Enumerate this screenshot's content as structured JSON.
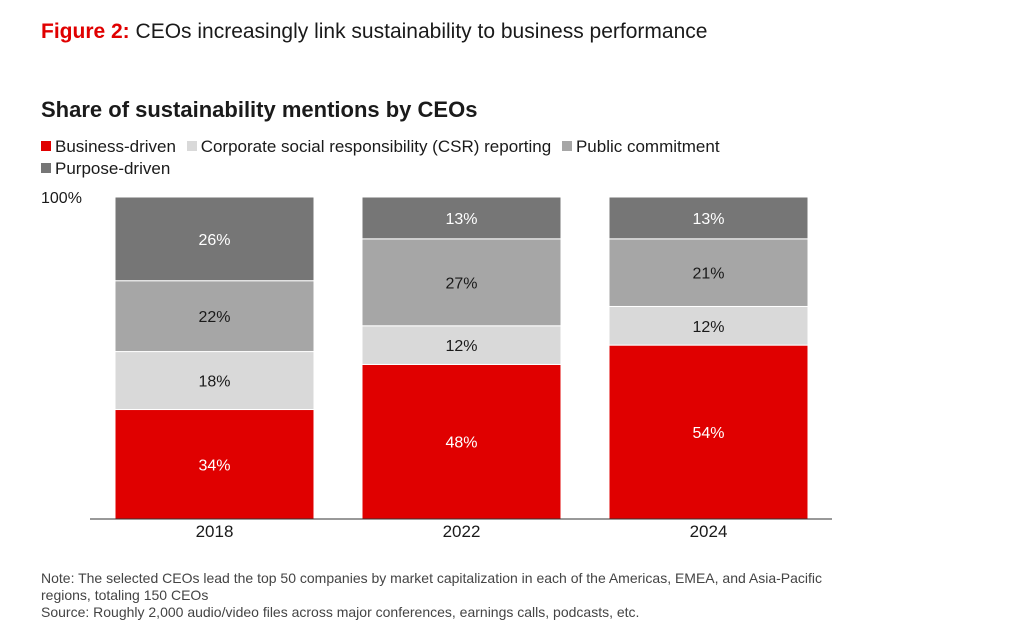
{
  "figure": {
    "label": "Figure 2:",
    "caption": " CEOs increasingly link sustainability to business performance"
  },
  "colors": {
    "accent": "#e00000",
    "business": "#e00000",
    "csr": "#d9d9d9",
    "public": "#a6a6a6",
    "purpose": "#767676"
  },
  "chart_data": {
    "type": "bar",
    "stacked": true,
    "title": "Share of sustainability mentions by CEOs",
    "categories": [
      "2018",
      "2022",
      "2024"
    ],
    "y_top_label": "100%",
    "ylim": [
      0,
      100
    ],
    "legend_position": "top-left",
    "series": [
      {
        "name": "Business-driven",
        "values": [
          34,
          48,
          54
        ],
        "labels": [
          "34%",
          "48%",
          "54%"
        ],
        "color": "#e00000"
      },
      {
        "name": "Corporate social responsibility (CSR) reporting",
        "values": [
          18,
          12,
          12
        ],
        "labels": [
          "18%",
          "12%",
          "12%"
        ],
        "color": "#d9d9d9"
      },
      {
        "name": "Public commitment",
        "values": [
          22,
          27,
          21
        ],
        "labels": [
          "22%",
          "27%",
          "21%"
        ],
        "color": "#a6a6a6"
      },
      {
        "name": "Purpose-driven",
        "values": [
          26,
          13,
          13
        ],
        "labels": [
          "26%",
          "13%",
          "13%"
        ],
        "color": "#767676"
      }
    ]
  },
  "notes": {
    "note": "Note: The selected CEOs lead the top 50 companies by market capitalization in each of the Americas, EMEA, and Asia-Pacific regions, totaling 150 CEOs",
    "source": "Source: Roughly 2,000 audio/video files across major conferences, earnings calls, podcasts, etc."
  }
}
